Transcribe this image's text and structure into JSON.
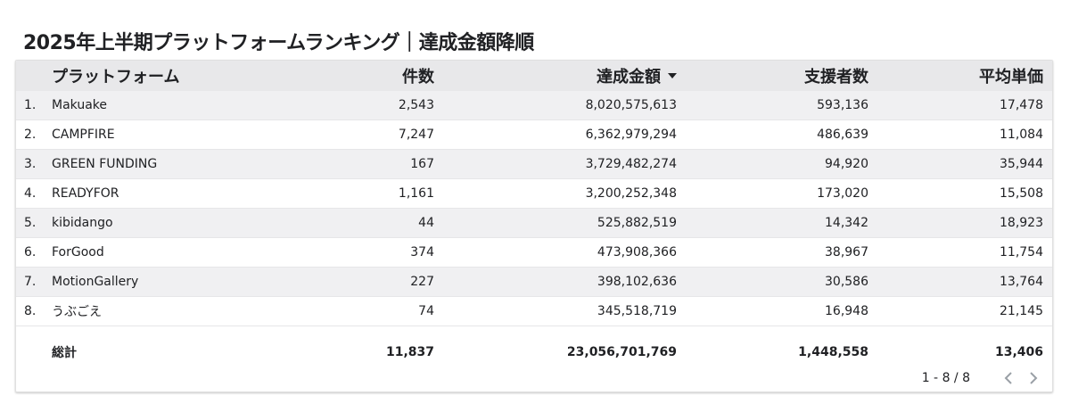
{
  "title": "2025年上半期プラットフォームランキング｜達成金額降順",
  "columns": {
    "platform": "プラットフォーム",
    "count": "件数",
    "amount": "達成金額",
    "backers": "支援者数",
    "avg": "平均単価"
  },
  "rows": [
    {
      "idx": "1.",
      "name": "Makuake",
      "count": "2,543",
      "amount": "8,020,575,613",
      "backers": "593,136",
      "avg": "17,478"
    },
    {
      "idx": "2.",
      "name": "CAMPFIRE",
      "count": "7,247",
      "amount": "6,362,979,294",
      "backers": "486,639",
      "avg": "11,084"
    },
    {
      "idx": "3.",
      "name": "GREEN FUNDING",
      "count": "167",
      "amount": "3,729,482,274",
      "backers": "94,920",
      "avg": "35,944"
    },
    {
      "idx": "4.",
      "name": "READYFOR",
      "count": "1,161",
      "amount": "3,200,252,348",
      "backers": "173,020",
      "avg": "15,508"
    },
    {
      "idx": "5.",
      "name": "kibidango",
      "count": "44",
      "amount": "525,882,519",
      "backers": "14,342",
      "avg": "18,923"
    },
    {
      "idx": "6.",
      "name": "ForGood",
      "count": "374",
      "amount": "473,908,366",
      "backers": "38,967",
      "avg": "11,754"
    },
    {
      "idx": "7.",
      "name": "MotionGallery",
      "count": "227",
      "amount": "398,102,636",
      "backers": "30,586",
      "avg": "13,764"
    },
    {
      "idx": "8.",
      "name": "うぶごえ",
      "count": "74",
      "amount": "345,518,719",
      "backers": "16,948",
      "avg": "21,145"
    }
  ],
  "total": {
    "label": "総計",
    "count": "11,837",
    "amount": "23,056,701,769",
    "backers": "1,448,558",
    "avg": "13,406"
  },
  "pagination": {
    "text": "1 - 8 / 8"
  },
  "icons": {
    "sort": "sort-descending-icon",
    "prev": "chevron-left-icon",
    "next": "chevron-right-icon"
  }
}
